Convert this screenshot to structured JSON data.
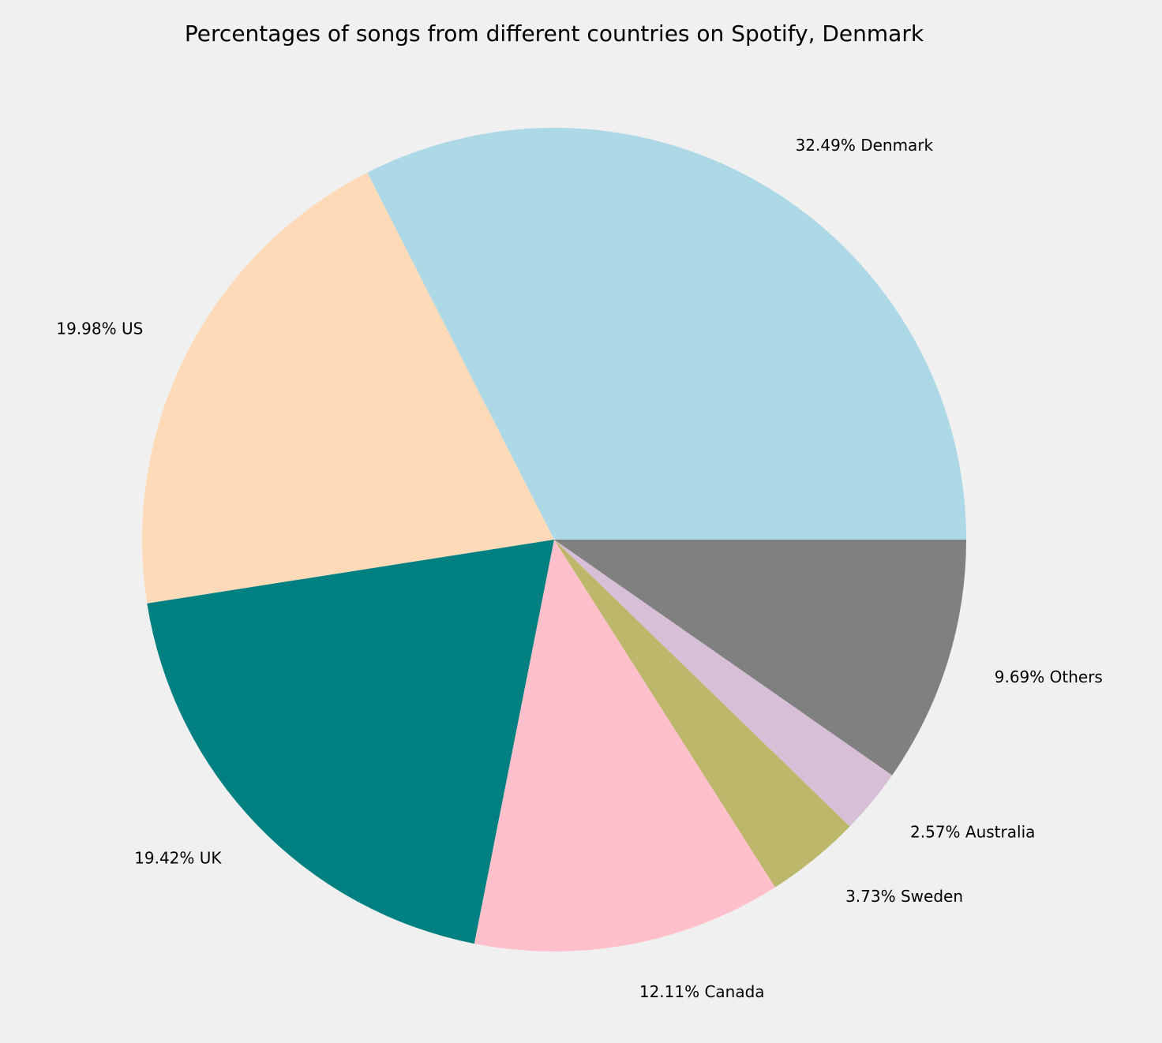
{
  "chart_data": {
    "type": "pie",
    "title": "Percentages of songs from different countries on Spotify, Denmark",
    "start_angle_deg": 0,
    "direction": "counterclockwise",
    "slices": [
      {
        "label": "Denmark",
        "value": 32.49,
        "display": "32.49% Denmark",
        "color": "#add8e6"
      },
      {
        "label": "US",
        "value": 19.98,
        "display": "19.98% US",
        "color": "#ffdab9"
      },
      {
        "label": "UK",
        "value": 19.42,
        "display": "19.42% UK",
        "color": "#008080"
      },
      {
        "label": "Canada",
        "value": 12.11,
        "display": "12.11% Canada",
        "color": "#ffc0cb"
      },
      {
        "label": "Sweden",
        "value": 3.73,
        "display": "3.73% Sweden",
        "color": "#bdb76b"
      },
      {
        "label": "Australia",
        "value": 2.57,
        "display": "2.57% Australia",
        "color": "#d8bfd8"
      },
      {
        "label": "Others",
        "value": 9.69,
        "display": "9.69% Others",
        "color": "#808080"
      }
    ]
  }
}
